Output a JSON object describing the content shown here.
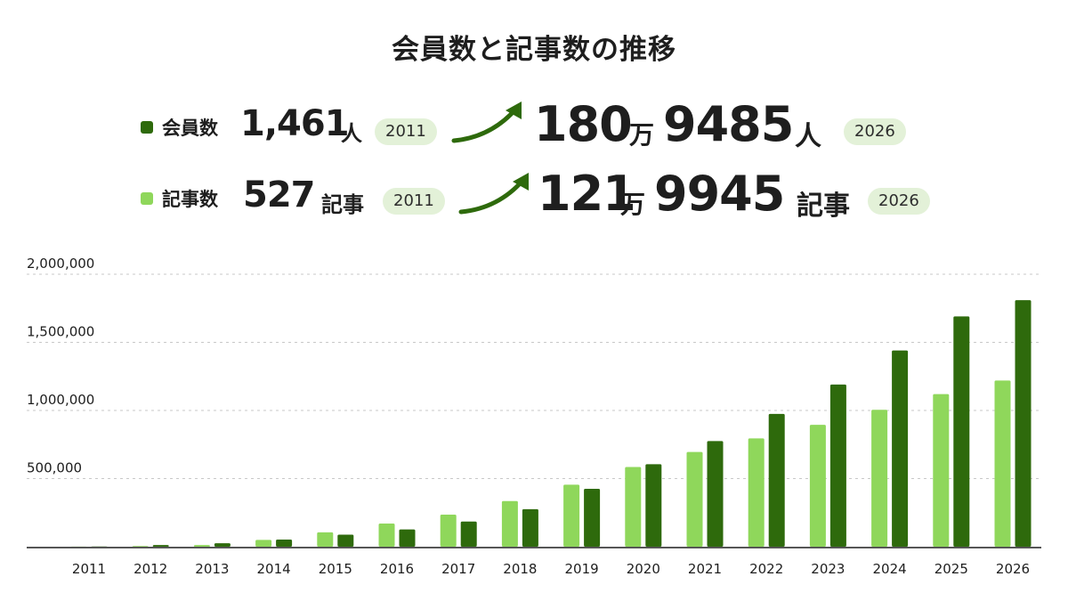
{
  "title": "会員数と記事数の推移",
  "colors": {
    "members": "#2e6a0c",
    "articles": "#8fd75b",
    "pill": "#e3f1d8",
    "arrow": "#2e6a0c"
  },
  "stats": {
    "members": {
      "label": "会員数",
      "from_value": "1,461",
      "from_unit": "人",
      "from_year": "2011",
      "to_value_a": "180",
      "to_man": "万",
      "to_value_b": "9485",
      "to_unit": "人",
      "to_year": "2026"
    },
    "articles": {
      "label": "記事数",
      "from_value": "527",
      "from_unit": "記事",
      "from_year": "2011",
      "to_value_a": "121",
      "to_man": "万",
      "to_value_b": "9945",
      "to_unit": "記事",
      "to_year": "2026"
    }
  },
  "chart_data": {
    "type": "bar",
    "categories": [
      "2011",
      "2012",
      "2013",
      "2014",
      "2015",
      "2016",
      "2017",
      "2018",
      "2019",
      "2020",
      "2021",
      "2022",
      "2023",
      "2024",
      "2025",
      "2026"
    ],
    "series": [
      {
        "name": "記事数",
        "color": "#8fd75b",
        "values": [
          527,
          5000,
          12000,
          50000,
          105000,
          170000,
          235000,
          335000,
          455000,
          585000,
          695000,
          795000,
          895000,
          1005000,
          1120000,
          1219945
        ]
      },
      {
        "name": "会員数",
        "color": "#2e6a0c",
        "values": [
          1461,
          12000,
          25000,
          52000,
          88000,
          127000,
          185000,
          275000,
          425000,
          605000,
          775000,
          975000,
          1190000,
          1440000,
          1690000,
          1809485
        ]
      }
    ],
    "ylim": [
      0,
      2000000
    ],
    "yticks": [
      500000,
      1000000,
      1500000,
      2000000
    ],
    "ytick_labels": [
      "500,000",
      "1,000,000",
      "1,500,000",
      "2,000,000"
    ],
    "grid": true
  }
}
